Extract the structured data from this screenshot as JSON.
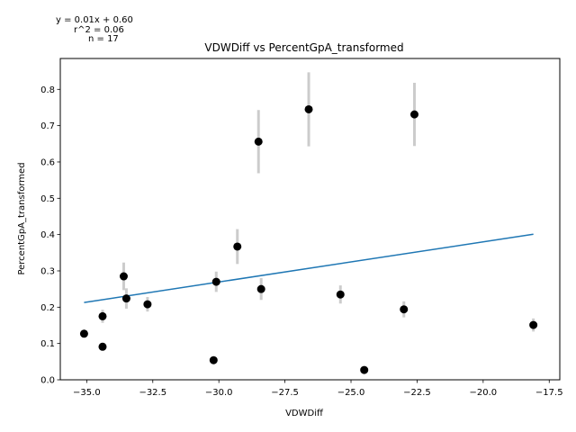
{
  "chart_data": {
    "type": "scatter",
    "title": "VDWDiff vs PercentGpA_transformed",
    "xlabel": "VDWDiff",
    "ylabel": "PercentGpA_transformed",
    "xlim": [
      -36.0,
      -17.1
    ],
    "ylim": [
      0.0,
      0.885
    ],
    "xticks": [
      -35.0,
      -32.5,
      -30.0,
      -27.5,
      -25.0,
      -22.5,
      -20.0,
      -17.5
    ],
    "xtick_labels": [
      "−35.0",
      "−32.5",
      "−30.0",
      "−27.5",
      "−25.0",
      "−22.5",
      "−20.0",
      "−17.5"
    ],
    "yticks": [
      0.0,
      0.1,
      0.2,
      0.3,
      0.4,
      0.5,
      0.6,
      0.7,
      0.8
    ],
    "ytick_labels": [
      "0.0",
      "0.1",
      "0.2",
      "0.3",
      "0.4",
      "0.5",
      "0.6",
      "0.7",
      "0.8"
    ],
    "grid": false,
    "annotations": [
      "y = 0.01x + 0.60",
      "r^2 = 0.06",
      "n = 17"
    ],
    "points": [
      {
        "x": -35.1,
        "y": 0.127,
        "err": 0.0
      },
      {
        "x": -34.4,
        "y": 0.175,
        "err": 0.018
      },
      {
        "x": -34.4,
        "y": 0.091,
        "err": 0.0
      },
      {
        "x": -33.6,
        "y": 0.285,
        "err": 0.038
      },
      {
        "x": -33.5,
        "y": 0.224,
        "err": 0.028
      },
      {
        "x": -32.7,
        "y": 0.208,
        "err": 0.02
      },
      {
        "x": -30.2,
        "y": 0.054,
        "err": 0.0
      },
      {
        "x": -30.1,
        "y": 0.27,
        "err": 0.028
      },
      {
        "x": -29.3,
        "y": 0.367,
        "err": 0.048
      },
      {
        "x": -28.5,
        "y": 0.656,
        "err": 0.087
      },
      {
        "x": -28.4,
        "y": 0.25,
        "err": 0.03
      },
      {
        "x": -26.6,
        "y": 0.745,
        "err": 0.102
      },
      {
        "x": -25.4,
        "y": 0.235,
        "err": 0.025
      },
      {
        "x": -24.5,
        "y": 0.027,
        "err": 0.0
      },
      {
        "x": -22.6,
        "y": 0.731,
        "err": 0.087
      },
      {
        "x": -23.0,
        "y": 0.194,
        "err": 0.022
      },
      {
        "x": -18.1,
        "y": 0.151,
        "err": 0.018
      }
    ],
    "fit_line": {
      "x": [
        -35.1,
        -18.1
      ],
      "y": [
        0.213,
        0.401
      ]
    },
    "colors": {
      "points": "#000000",
      "errorbars": "#cccccc",
      "fit": "#1f77b4"
    }
  }
}
